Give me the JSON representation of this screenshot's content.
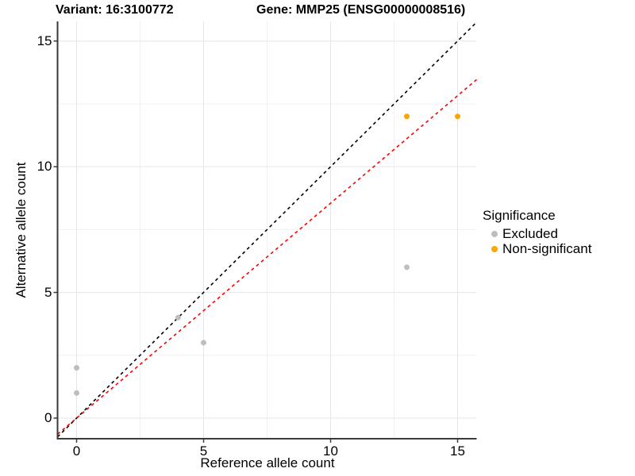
{
  "chart_data": {
    "type": "scatter",
    "title_left": "Variant: 16:3100772",
    "title_right": "Gene: MMP25 (ENSG00000008516)",
    "xlabel": "Reference allele count",
    "ylabel": "Alternative allele count",
    "xlim": [
      -0.75,
      15.75
    ],
    "ylim": [
      -0.82,
      15.78
    ],
    "xticks": [
      0,
      5,
      10,
      15
    ],
    "yticks": [
      0,
      5,
      10,
      15
    ],
    "minor_xticks": [
      2.5,
      7.5,
      12.5
    ],
    "minor_yticks": [
      2.5,
      7.5,
      12.5
    ],
    "grid": true,
    "series": [
      {
        "name": "Excluded",
        "color": "#BEBEBE",
        "points": [
          [
            0,
            1
          ],
          [
            0,
            2
          ],
          [
            4,
            4
          ],
          [
            5,
            3
          ],
          [
            13,
            6
          ]
        ]
      },
      {
        "name": "Non-significant",
        "color": "#FFA500",
        "points": [
          [
            13,
            12
          ],
          [
            15,
            12
          ]
        ]
      }
    ],
    "lines": [
      {
        "name": "identity",
        "slope": 1,
        "intercept": 0,
        "color": "#000000",
        "dash": "4,4"
      },
      {
        "name": "fit",
        "slope": 0.855,
        "intercept": 0,
        "color": "#FF0000",
        "dash": "4,4"
      }
    ],
    "legend": {
      "title": "Significance",
      "position": "right"
    }
  }
}
